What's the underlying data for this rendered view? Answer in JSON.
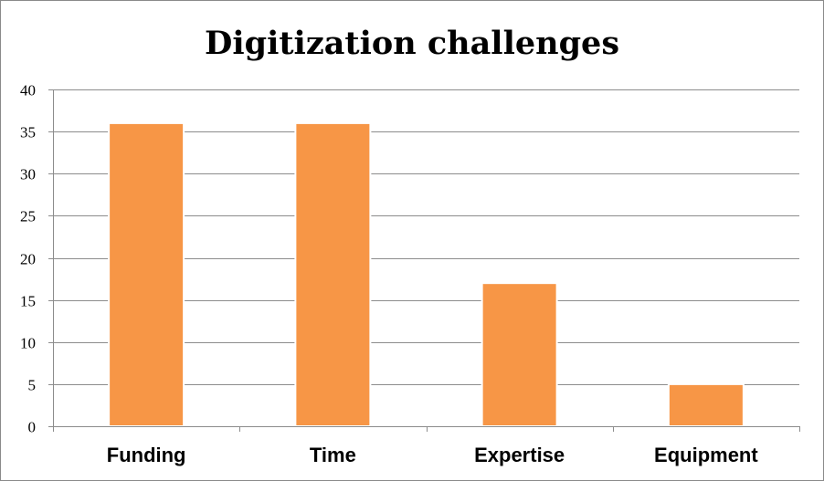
{
  "chart_data": {
    "type": "bar",
    "title": "Digitization challenges",
    "xlabel": "",
    "ylabel": "",
    "categories": [
      "Funding",
      "Time",
      "Expertise",
      "Equipment"
    ],
    "values": [
      36,
      36,
      17,
      5
    ],
    "ylim": [
      0,
      40
    ],
    "yticks": [
      0,
      5,
      10,
      15,
      20,
      25,
      30,
      35,
      40
    ],
    "grid": true,
    "legend": "none",
    "colors": {
      "bar": "#F79646",
      "grid": "#8C8C8C",
      "axis": "#8C8C8C",
      "background": "#FFFFFF"
    }
  }
}
